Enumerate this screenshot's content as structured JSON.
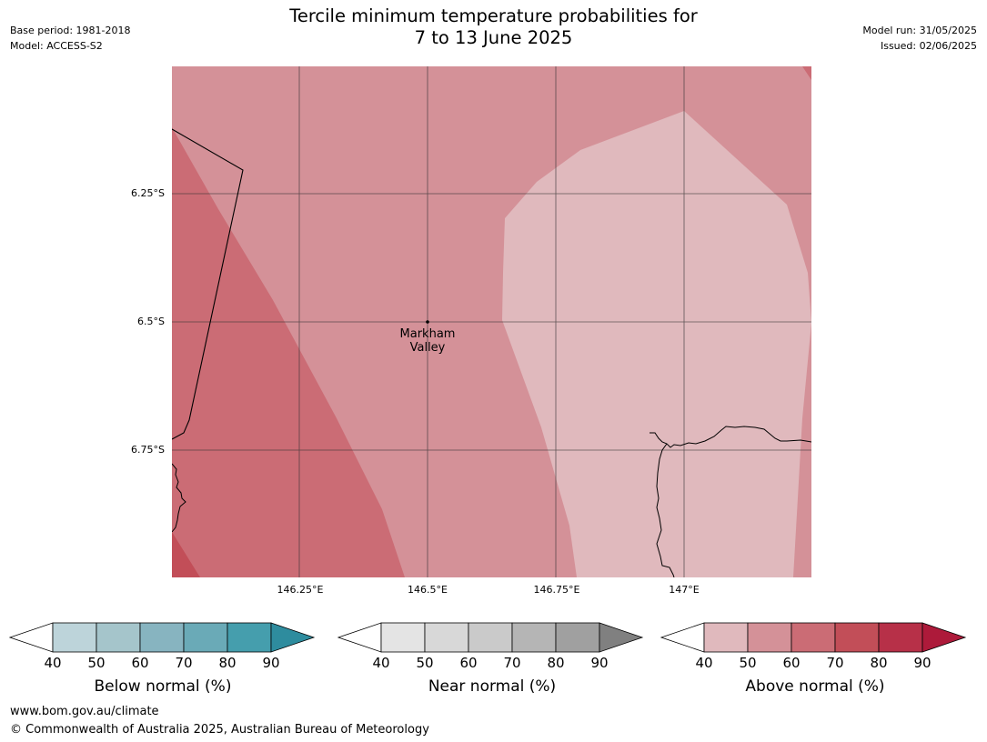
{
  "header": {
    "base_period": "Base period: 1981-2018",
    "model": "Model: ACCESS-S2",
    "title_line1": "Tercile minimum temperature probabilities for",
    "title_line2": "7 to 13 June 2025",
    "model_run": "Model run: 31/05/2025",
    "issued": "Issued: 02/06/2025"
  },
  "map": {
    "lat_labels": [
      "6.25°S",
      "6.5°S",
      "6.75°S"
    ],
    "lon_labels": [
      "146.25°E",
      "146.5°E",
      "146.75°E",
      "147°E"
    ],
    "place": {
      "line1": "Markham",
      "line2": "Valley"
    },
    "colors": {
      "above_50_60": "#d49198",
      "above_60_70": "#cb6c75",
      "above_70_80": "#c24e58",
      "above_40_50": "#e0b9bd",
      "grid": "#333333",
      "coast": "#000000"
    }
  },
  "colorbars": [
    {
      "label": "Below normal (%)",
      "colors": [
        "#bdd4da",
        "#a5c5cb",
        "#87b4c0",
        "#6aaab7",
        "#459ead",
        "#2e8c9e"
      ],
      "ticks": [
        "40",
        "50",
        "60",
        "70",
        "80",
        "90"
      ]
    },
    {
      "label": "Near normal (%)",
      "colors": [
        "#e4e4e4",
        "#d8d8d8",
        "#cacaca",
        "#b5b5b5",
        "#a0a0a0",
        "#808080"
      ],
      "ticks": [
        "40",
        "50",
        "60",
        "70",
        "80",
        "90"
      ]
    },
    {
      "label": "Above normal (%)",
      "colors": [
        "#e0b9bd",
        "#d49198",
        "#cb6c75",
        "#c24e58",
        "#b73048",
        "#ad1a3a"
      ],
      "ticks": [
        "40",
        "50",
        "60",
        "70",
        "80",
        "90"
      ]
    }
  ],
  "footer": {
    "url": "www.bom.gov.au/climate",
    "copyright": "© Commonwealth of Australia 2025, Australian Bureau of Meteorology"
  }
}
